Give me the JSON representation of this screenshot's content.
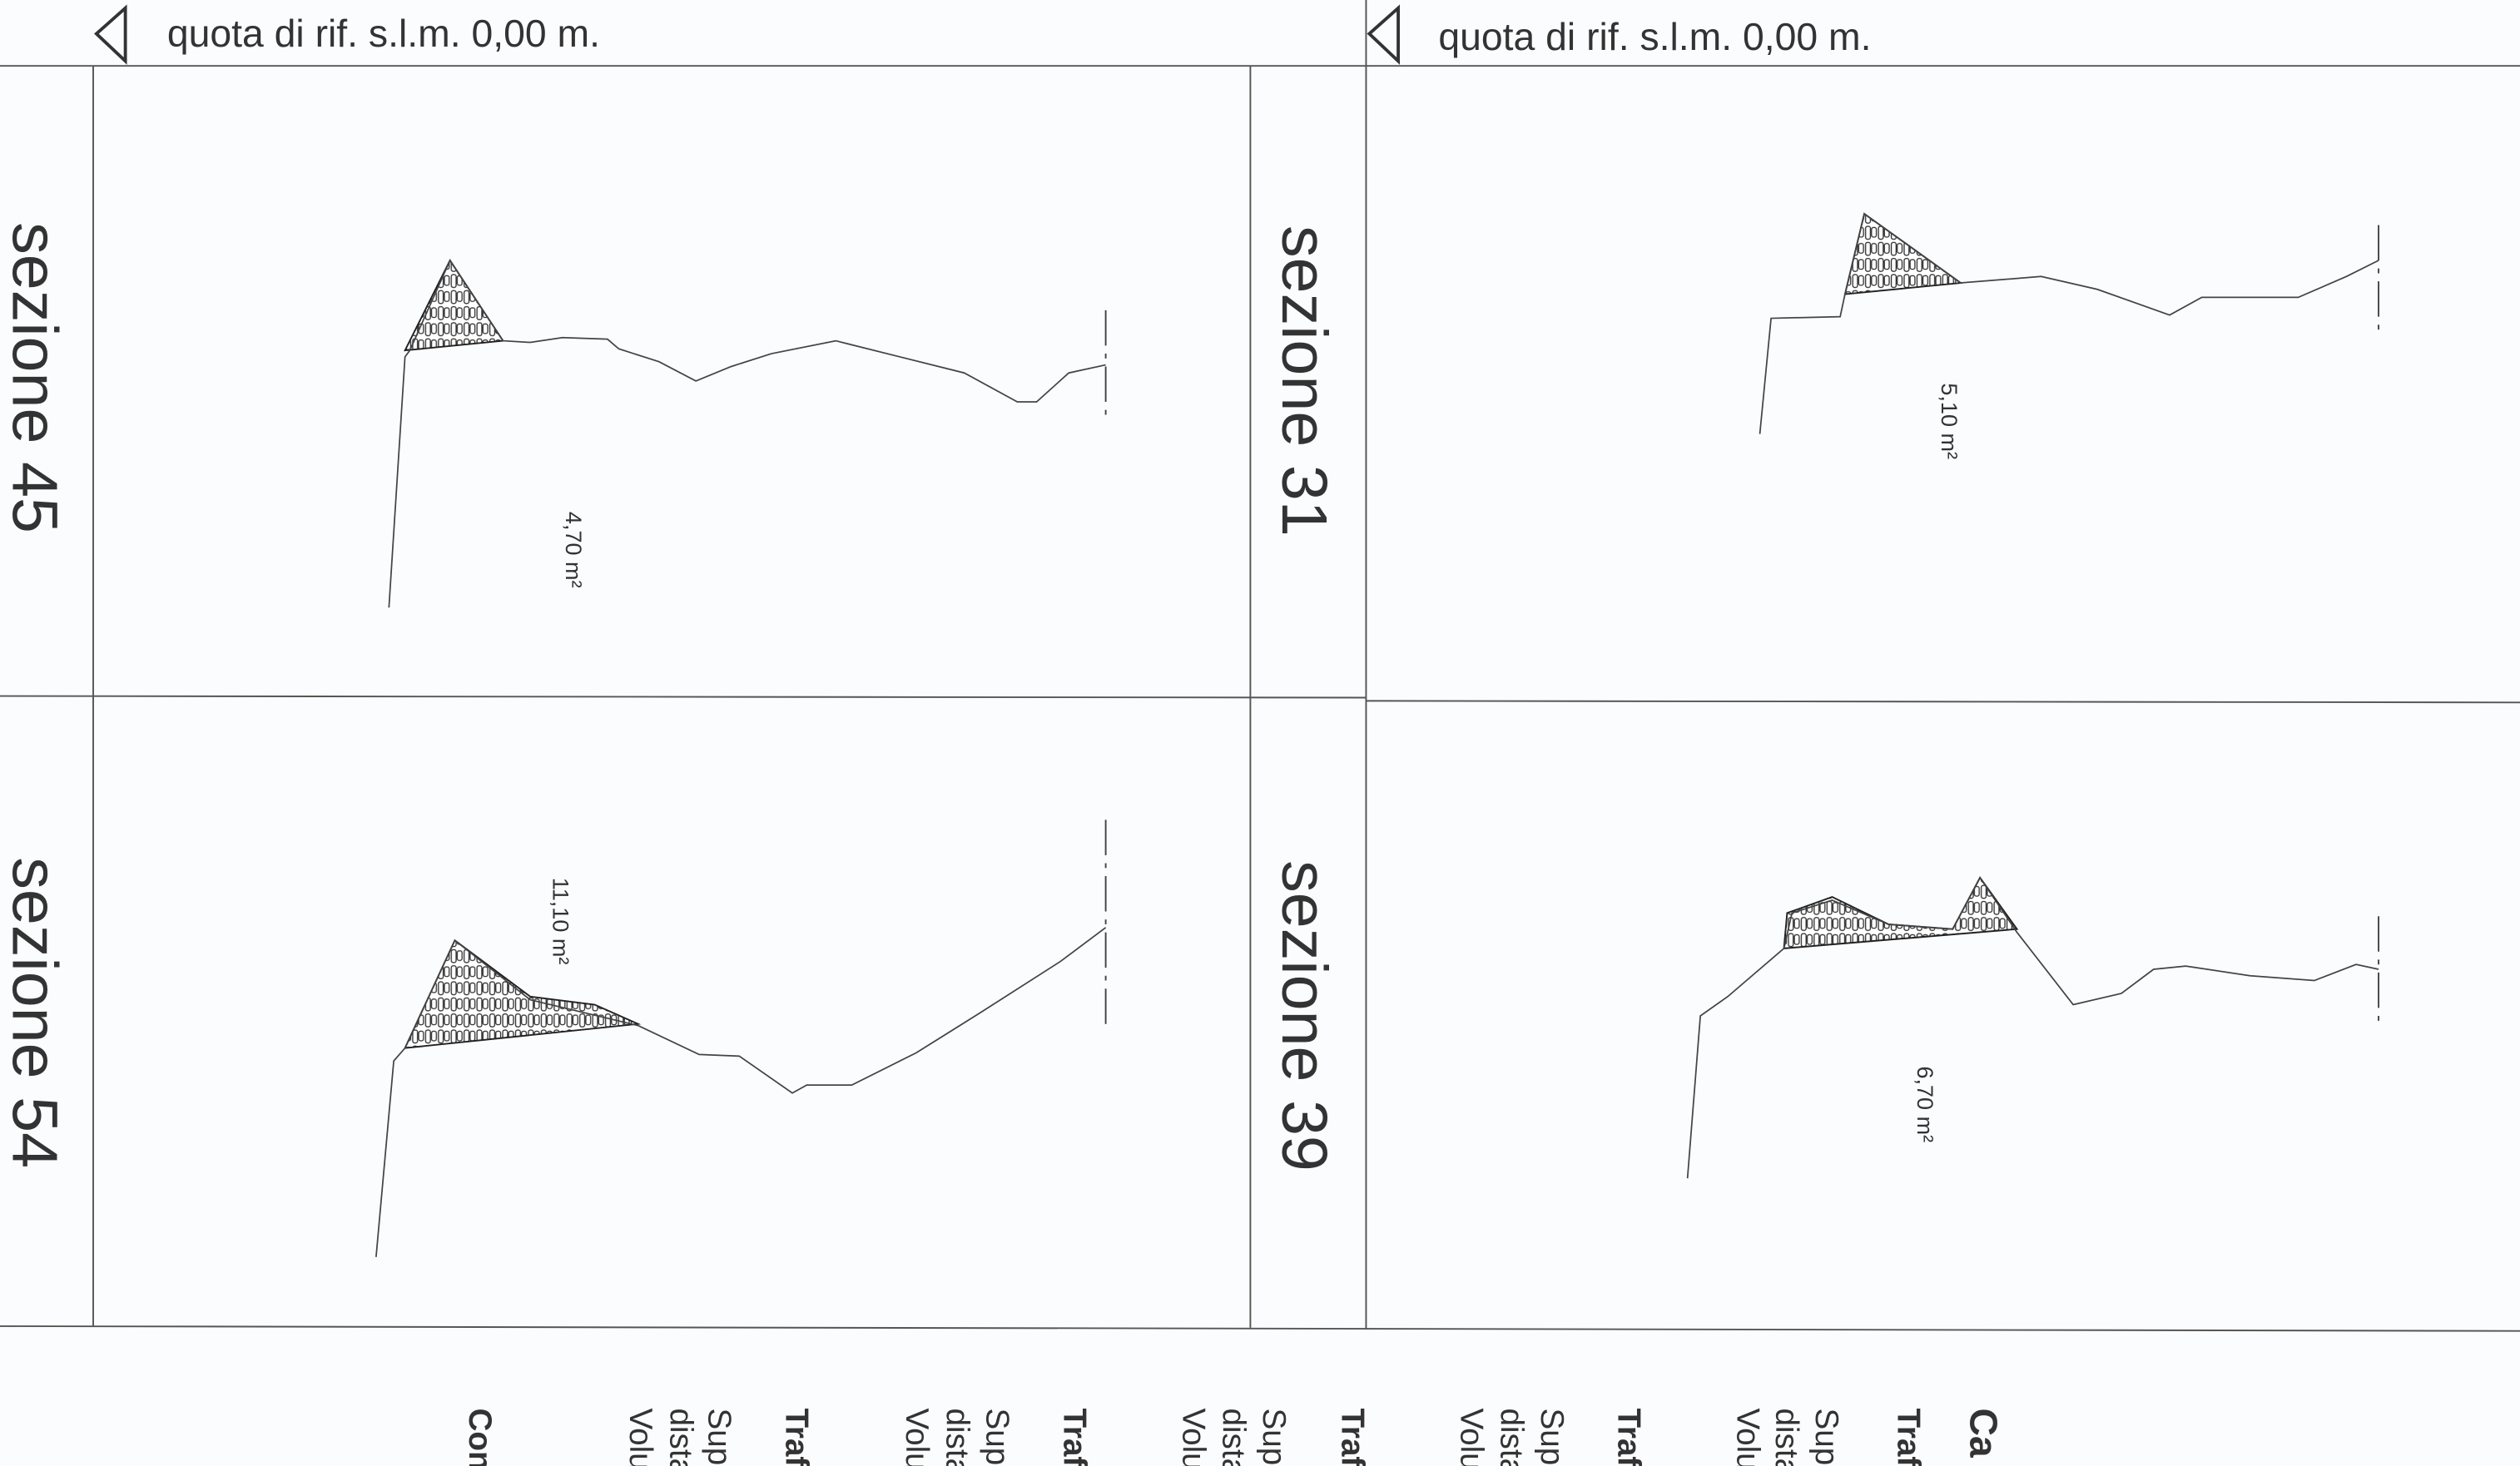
{
  "headers": [
    "quota di rif. s.l.m. 0,00 m.",
    "quota di rif. s.l.m. 0,00 m."
  ],
  "sections": [
    {
      "label": "sezione 45",
      "area": "4,70 m²"
    },
    {
      "label": "sezione 54",
      "area": "11,10 m²"
    },
    {
      "label": "sezione 31",
      "area": "5,10 m²"
    },
    {
      "label": "sezione 39",
      "area": "6,70 m²"
    }
  ],
  "footer": [
    "Con",
    "Sup",
    "dista",
    "Volu",
    "Traf",
    "Sup",
    "dista",
    "Volu",
    "Traf",
    "Sup",
    "dista",
    "Volu",
    "Traf",
    "Sup",
    "dista",
    "Volu",
    "Traf",
    "Sup",
    "dista",
    "Volu",
    "Traf",
    "Ca"
  ]
}
